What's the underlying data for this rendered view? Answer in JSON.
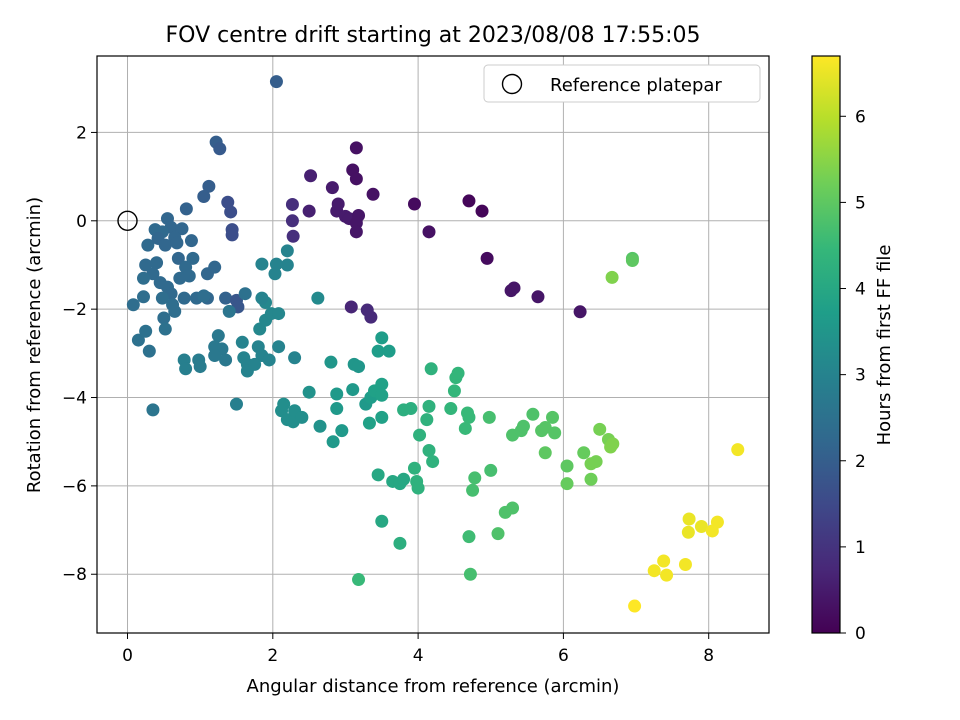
{
  "chart_data": {
    "type": "scatter",
    "title": "FOV centre drift starting at 2023/08/08 17:55:05",
    "xlabel": "Angular distance from reference (arcmin)",
    "ylabel": "Rotation from reference (arcmin)",
    "xlim": [
      -0.42,
      8.83
    ],
    "ylim": [
      -9.33,
      3.73
    ],
    "xticks": [
      "0",
      "2",
      "4",
      "6",
      "8"
    ],
    "yticks": [
      "2",
      "0",
      "−2",
      "−4",
      "−6",
      "−8"
    ],
    "grid": true,
    "legend": {
      "position": "top-right",
      "entries": [
        "Reference platepar"
      ]
    },
    "reference_point": {
      "x": 0.0,
      "y": 0.0,
      "label": "Reference platepar"
    },
    "colorbar": {
      "label": "Hours from first FF file",
      "range": [
        0,
        6.7
      ],
      "ticks": [
        "0",
        "1",
        "2",
        "3",
        "4",
        "5",
        "6"
      ],
      "colormap": "viridis",
      "colors": [
        "#440154",
        "#482878",
        "#3e4989",
        "#31688e",
        "#26828e",
        "#1f9e89",
        "#35b779",
        "#6ece58",
        "#b5de2b",
        "#fde725"
      ]
    },
    "points": [
      [
        2.05,
        3.15,
        2.0
      ],
      [
        1.22,
        1.78,
        2.0
      ],
      [
        1.27,
        1.63,
        1.9
      ],
      [
        1.12,
        0.78,
        2.0
      ],
      [
        1.05,
        0.55,
        2.0
      ],
      [
        0.81,
        0.27,
        2.1
      ],
      [
        1.38,
        0.42,
        1.6
      ],
      [
        1.42,
        0.2,
        1.6
      ],
      [
        1.44,
        -0.2,
        1.6
      ],
      [
        1.44,
        -0.32,
        1.6
      ],
      [
        0.55,
        0.05,
        2.2
      ],
      [
        0.6,
        -0.15,
        2.2
      ],
      [
        0.75,
        -0.18,
        2.2
      ],
      [
        0.65,
        -0.38,
        2.2
      ],
      [
        0.48,
        -0.25,
        2.3
      ],
      [
        0.38,
        -0.2,
        2.3
      ],
      [
        0.28,
        -0.55,
        2.3
      ],
      [
        0.42,
        -0.4,
        2.2
      ],
      [
        0.52,
        -0.55,
        2.2
      ],
      [
        0.68,
        -0.5,
        2.2
      ],
      [
        0.88,
        -0.45,
        2.2
      ],
      [
        0.7,
        -0.85,
        2.2
      ],
      [
        0.8,
        -1.05,
        2.3
      ],
      [
        0.25,
        -1.0,
        2.3
      ],
      [
        0.4,
        -0.95,
        2.3
      ],
      [
        0.35,
        -1.2,
        2.3
      ],
      [
        0.22,
        -1.3,
        2.4
      ],
      [
        0.45,
        -1.4,
        2.3
      ],
      [
        0.55,
        -1.5,
        2.3
      ],
      [
        0.6,
        -1.65,
        2.3
      ],
      [
        0.72,
        -1.3,
        2.3
      ],
      [
        0.85,
        -1.25,
        2.3
      ],
      [
        0.9,
        -0.85,
        2.3
      ],
      [
        0.78,
        -1.75,
        2.3
      ],
      [
        0.62,
        -1.9,
        2.4
      ],
      [
        0.48,
        -1.75,
        2.4
      ],
      [
        0.5,
        -2.2,
        2.4
      ],
      [
        0.65,
        -2.05,
        2.4
      ],
      [
        0.22,
        -1.72,
        2.4
      ],
      [
        0.08,
        -1.9,
        2.4
      ],
      [
        0.95,
        -1.75,
        2.3
      ],
      [
        1.1,
        -1.2,
        2.2
      ],
      [
        1.2,
        -1.05,
        2.2
      ],
      [
        1.1,
        -1.75,
        2.2
      ],
      [
        1.35,
        -1.75,
        2.1
      ],
      [
        1.5,
        -1.8,
        1.8
      ],
      [
        1.52,
        -1.95,
        1.8
      ],
      [
        1.62,
        -1.65,
        2.5
      ],
      [
        1.4,
        -2.05,
        2.6
      ],
      [
        1.05,
        -1.7,
        2.4
      ],
      [
        0.15,
        -2.7,
        2.5
      ],
      [
        0.25,
        -2.5,
        2.5
      ],
      [
        0.3,
        -2.95,
        2.5
      ],
      [
        0.52,
        -2.45,
        2.5
      ],
      [
        0.35,
        -4.28,
        2.6
      ],
      [
        1.25,
        -2.6,
        2.7
      ],
      [
        1.2,
        -2.85,
        2.7
      ],
      [
        1.3,
        -2.9,
        2.7
      ],
      [
        1.2,
        -3.05,
        2.7
      ],
      [
        1.35,
        -3.15,
        2.7
      ],
      [
        0.98,
        -3.15,
        2.8
      ],
      [
        1.0,
        -3.3,
        2.8
      ],
      [
        0.78,
        -3.15,
        2.9
      ],
      [
        0.8,
        -3.35,
        2.9
      ],
      [
        1.5,
        -4.15,
        2.9
      ],
      [
        1.58,
        -2.75,
        3.0
      ],
      [
        1.6,
        -3.1,
        3.0
      ],
      [
        1.65,
        -3.25,
        3.0
      ],
      [
        1.65,
        -3.4,
        3.0
      ],
      [
        1.8,
        -2.85,
        3.0
      ],
      [
        1.85,
        -3.05,
        3.0
      ],
      [
        1.75,
        -3.25,
        3.0
      ],
      [
        1.95,
        -3.15,
        3.0
      ],
      [
        1.82,
        -2.45,
        3.1
      ],
      [
        1.9,
        -2.25,
        3.1
      ],
      [
        1.98,
        -2.1,
        3.1
      ],
      [
        1.9,
        -1.85,
        3.1
      ],
      [
        2.08,
        -2.1,
        3.1
      ],
      [
        1.85,
        -1.75,
        3.0
      ],
      [
        2.2,
        -0.68,
        3.0
      ],
      [
        1.85,
        -0.98,
        3.0
      ],
      [
        2.05,
        -0.98,
        3.0
      ],
      [
        2.03,
        -1.2,
        3.0
      ],
      [
        2.2,
        -1.0,
        3.0
      ],
      [
        2.08,
        -2.85,
        3.0
      ],
      [
        2.3,
        -3.1,
        3.0
      ],
      [
        2.62,
        -1.75,
        3.2
      ],
      [
        2.12,
        -4.3,
        3.3
      ],
      [
        2.15,
        -4.15,
        3.3
      ],
      [
        2.2,
        -4.5,
        3.3
      ],
      [
        2.28,
        -4.55,
        3.3
      ],
      [
        2.3,
        -4.3,
        3.3
      ],
      [
        2.4,
        -4.45,
        3.3
      ],
      [
        2.5,
        -3.88,
        3.4
      ],
      [
        2.65,
        -4.65,
        3.4
      ],
      [
        2.8,
        -3.2,
        3.5
      ],
      [
        2.88,
        -3.92,
        3.6
      ],
      [
        2.88,
        -4.25,
        3.6
      ],
      [
        2.95,
        -4.75,
        3.6
      ],
      [
        2.83,
        -5.0,
        3.6
      ],
      [
        3.12,
        -3.25,
        3.5
      ],
      [
        3.18,
        -3.3,
        3.5
      ],
      [
        3.1,
        -3.82,
        3.6
      ],
      [
        3.28,
        -4.15,
        3.6
      ],
      [
        3.35,
        -4.0,
        3.7
      ],
      [
        3.45,
        -2.95,
        3.7
      ],
      [
        3.5,
        -2.65,
        3.7
      ],
      [
        3.6,
        -2.95,
        3.7
      ],
      [
        3.4,
        -3.85,
        3.8
      ],
      [
        3.5,
        -3.7,
        3.8
      ],
      [
        3.5,
        -3.95,
        3.8
      ],
      [
        3.33,
        -4.58,
        3.8
      ],
      [
        3.5,
        -4.45,
        3.8
      ],
      [
        3.45,
        -5.75,
        4.0
      ],
      [
        3.5,
        -6.8,
        4.0
      ],
      [
        3.65,
        -5.9,
        4.0
      ],
      [
        3.75,
        -5.95,
        4.0
      ],
      [
        3.8,
        -5.85,
        4.0
      ],
      [
        3.75,
        -7.3,
        4.2
      ],
      [
        3.8,
        -4.28,
        4.2
      ],
      [
        3.9,
        -4.25,
        4.2
      ],
      [
        3.95,
        -5.6,
        4.3
      ],
      [
        3.98,
        -5.9,
        4.3
      ],
      [
        4.0,
        -6.05,
        4.3
      ],
      [
        4.02,
        -4.85,
        4.3
      ],
      [
        4.12,
        -4.5,
        4.3
      ],
      [
        4.15,
        -4.2,
        4.3
      ],
      [
        4.15,
        -5.2,
        4.3
      ],
      [
        4.2,
        -5.45,
        4.3
      ],
      [
        4.18,
        -3.35,
        4.3
      ],
      [
        4.45,
        -4.25,
        4.4
      ],
      [
        4.5,
        -3.85,
        4.4
      ],
      [
        4.52,
        -3.55,
        4.4
      ],
      [
        4.55,
        -3.45,
        4.4
      ],
      [
        3.18,
        -8.12,
        4.5
      ],
      [
        4.65,
        -4.7,
        4.5
      ],
      [
        4.68,
        -4.35,
        4.5
      ],
      [
        4.7,
        -4.45,
        4.5
      ],
      [
        4.7,
        -7.15,
        4.6
      ],
      [
        4.72,
        -8.0,
        4.7
      ],
      [
        4.75,
        -6.1,
        4.7
      ],
      [
        4.78,
        -5.82,
        4.7
      ],
      [
        4.98,
        -4.45,
        4.7
      ],
      [
        5.0,
        -5.65,
        4.7
      ],
      [
        5.1,
        -7.08,
        4.8
      ],
      [
        5.2,
        -6.6,
        4.8
      ],
      [
        5.3,
        -6.5,
        4.8
      ],
      [
        5.3,
        -4.85,
        4.8
      ],
      [
        5.42,
        -4.75,
        4.8
      ],
      [
        5.45,
        -4.65,
        4.8
      ],
      [
        5.58,
        -4.38,
        4.8
      ],
      [
        5.7,
        -4.75,
        4.9
      ],
      [
        5.75,
        -4.68,
        4.9
      ],
      [
        5.85,
        -4.45,
        4.9
      ],
      [
        5.88,
        -4.8,
        4.9
      ],
      [
        5.75,
        -5.25,
        5.0
      ],
      [
        6.05,
        -5.55,
        5.0
      ],
      [
        6.05,
        -5.95,
        5.1
      ],
      [
        6.28,
        -5.25,
        5.1
      ],
      [
        6.38,
        -5.85,
        5.2
      ],
      [
        6.38,
        -5.5,
        5.3
      ],
      [
        6.45,
        -5.45,
        5.3
      ],
      [
        6.5,
        -4.72,
        5.3
      ],
      [
        6.62,
        -4.95,
        5.3
      ],
      [
        6.68,
        -5.05,
        5.4
      ],
      [
        6.65,
        -5.12,
        5.4
      ],
      [
        6.67,
        -1.28,
        5.4
      ],
      [
        6.95,
        -0.85,
        4.9
      ],
      [
        6.95,
        -0.9,
        5.0
      ],
      [
        7.73,
        -6.75,
        6.5
      ],
      [
        7.72,
        -7.05,
        6.5
      ],
      [
        7.9,
        -6.92,
        6.5
      ],
      [
        8.05,
        -7.02,
        6.6
      ],
      [
        8.12,
        -6.82,
        6.6
      ],
      [
        7.38,
        -7.7,
        6.6
      ],
      [
        7.25,
        -7.92,
        6.6
      ],
      [
        7.42,
        -8.02,
        6.6
      ],
      [
        7.68,
        -7.78,
        6.6
      ],
      [
        6.98,
        -8.72,
        6.7
      ],
      [
        8.4,
        -5.18,
        6.6
      ],
      [
        2.27,
        0.37,
        0.9
      ],
      [
        2.27,
        0.0,
        0.9
      ],
      [
        2.28,
        -0.35,
        0.9
      ],
      [
        2.52,
        1.02,
        0.6
      ],
      [
        2.5,
        0.22,
        0.6
      ],
      [
        2.82,
        0.75,
        0.5
      ],
      [
        2.88,
        0.22,
        0.5
      ],
      [
        2.9,
        0.38,
        0.5
      ],
      [
        3.0,
        0.1,
        0.5
      ],
      [
        3.05,
        0.05,
        0.5
      ],
      [
        3.1,
        1.15,
        0.3
      ],
      [
        3.15,
        0.95,
        0.3
      ],
      [
        3.15,
        1.65,
        0.3
      ],
      [
        3.18,
        0.12,
        0.4
      ],
      [
        3.15,
        -0.05,
        0.4
      ],
      [
        3.15,
        -0.25,
        0.4
      ],
      [
        3.38,
        0.6,
        0.3
      ],
      [
        3.95,
        0.38,
        0.2
      ],
      [
        4.15,
        -0.25,
        0.3
      ],
      [
        4.7,
        0.45,
        0.1
      ],
      [
        4.88,
        0.22,
        0.1
      ],
      [
        4.95,
        -0.85,
        0.2
      ],
      [
        5.28,
        -1.58,
        0.4
      ],
      [
        5.32,
        -1.52,
        0.4
      ],
      [
        5.65,
        -1.72,
        0.4
      ],
      [
        6.23,
        -2.06,
        0.4
      ],
      [
        3.08,
        -1.95,
        0.7
      ],
      [
        3.3,
        -2.02,
        0.8
      ],
      [
        3.35,
        -2.18,
        0.8
      ]
    ]
  }
}
